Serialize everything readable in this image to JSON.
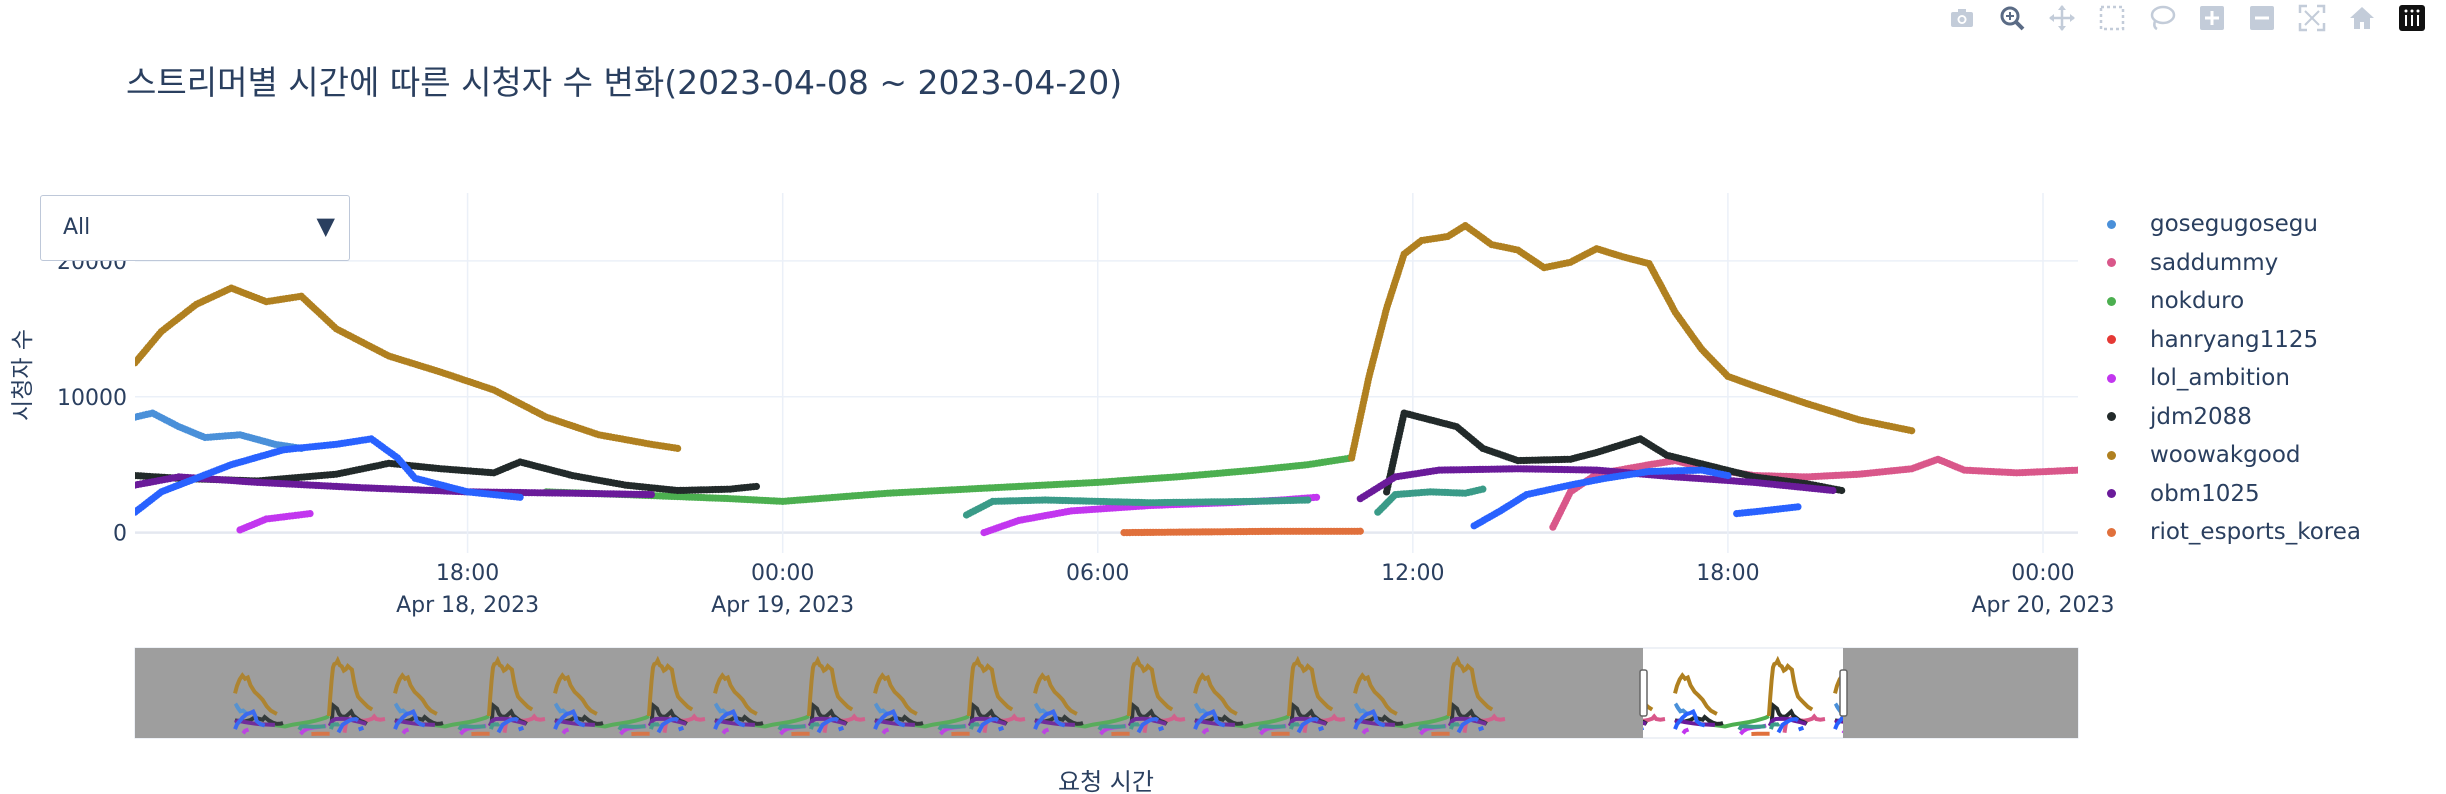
{
  "modebar": {
    "buttons": [
      {
        "name": "camera-icon",
        "title": "Download plot as a png"
      },
      {
        "name": "zoom-icon",
        "title": "Zoom"
      },
      {
        "name": "pan-icon",
        "title": "Pan"
      },
      {
        "name": "box-select-icon",
        "title": "Box Select"
      },
      {
        "name": "lasso-select-icon",
        "title": "Lasso Select"
      },
      {
        "name": "zoom-in-icon",
        "title": "Zoom in"
      },
      {
        "name": "zoom-out-icon",
        "title": "Zoom out"
      },
      {
        "name": "autoscale-icon",
        "title": "Autoscale"
      },
      {
        "name": "reset-axes-icon",
        "title": "Reset axes"
      },
      {
        "name": "plotly-logo-icon",
        "title": "Produced with Plotly"
      }
    ]
  },
  "dropdown": {
    "selected": "All"
  },
  "chart_data": {
    "type": "scatter",
    "title": "스트리머별 시간에 따른 시청자 수 변화(2023-04-08 ~ 2023-04-20)",
    "xlabel": "요청 시간",
    "ylabel": "시청자 수",
    "x_range": [
      "2023-04-18 11:40",
      "2023-04-20 00:40"
    ],
    "y_range": [
      -1500,
      25000
    ],
    "y_ticks": [
      0,
      10000,
      20000
    ],
    "y_tick_labels": [
      "0",
      "10000",
      "20000"
    ],
    "x_ticks": [
      {
        "at": "2023-04-18 18:00",
        "label": "18:00",
        "sub": "Apr 18, 2023"
      },
      {
        "at": "2023-04-19 00:00",
        "label": "00:00",
        "sub": "Apr 19, 2023"
      },
      {
        "at": "2023-04-19 06:00",
        "label": "06:00",
        "sub": ""
      },
      {
        "at": "2023-04-19 12:00",
        "label": "12:00",
        "sub": ""
      },
      {
        "at": "2023-04-19 18:00",
        "label": "18:00",
        "sub": ""
      },
      {
        "at": "2023-04-20 00:00",
        "label": "00:00",
        "sub": "Apr 20, 2023"
      }
    ],
    "grid": true,
    "legend_position": "right",
    "rangeslider": {
      "visible": true,
      "selected_start": "2023-04-18 11:40",
      "selected_end": "2023-04-20 00:40"
    },
    "series": [
      {
        "name": "gosegugosegu",
        "color": "#4a90d9",
        "segments": [
          [
            [
              "2023-04-18 11:40",
              8500
            ],
            [
              "2023-04-18 12:00",
              8800
            ],
            [
              "2023-04-18 12:30",
              7800
            ],
            [
              "2023-04-18 13:00",
              7000
            ],
            [
              "2023-04-18 13:40",
              7200
            ],
            [
              "2023-04-18 14:20",
              6500
            ],
            [
              "2023-04-18 14:50",
              6200
            ]
          ]
        ]
      },
      {
        "name": "saddummy",
        "color": "#d9578a",
        "segments": [
          [
            [
              "2023-04-19 14:40",
              400
            ],
            [
              "2023-04-19 15:00",
              3000
            ],
            [
              "2023-04-19 15:30",
              4300
            ],
            [
              "2023-04-19 16:30",
              5000
            ],
            [
              "2023-04-19 17:00",
              5300
            ],
            [
              "2023-04-19 17:30",
              4800
            ],
            [
              "2023-04-19 18:30",
              4200
            ],
            [
              "2023-04-19 19:30",
              4100
            ],
            [
              "2023-04-19 20:30",
              4300
            ],
            [
              "2023-04-19 21:30",
              4700
            ],
            [
              "2023-04-19 22:00",
              5400
            ],
            [
              "2023-04-19 22:30",
              4600
            ],
            [
              "2023-04-19 23:30",
              4400
            ],
            [
              "2023-04-20 00:40",
              4600
            ]
          ]
        ]
      },
      {
        "name": "nokduro",
        "color": "#4caf50",
        "segments": [
          [
            [
              "2023-04-18 19:30",
              3000
            ],
            [
              "2023-04-18 21:00",
              2800
            ],
            [
              "2023-04-18 23:00",
              2500
            ],
            [
              "2023-04-19 00:00",
              2300
            ],
            [
              "2023-04-19 02:00",
              2900
            ],
            [
              "2023-04-19 04:00",
              3300
            ],
            [
              "2023-04-19 06:00",
              3700
            ],
            [
              "2023-04-19 07:30",
              4100
            ],
            [
              "2023-04-19 09:00",
              4600
            ],
            [
              "2023-04-19 10:00",
              5000
            ],
            [
              "2023-04-19 10:50",
              5500
            ]
          ]
        ]
      },
      {
        "name": "hanryang1125",
        "color": "#e53935",
        "segments": []
      },
      {
        "name": "lol_ambition",
        "color": "#c236ef",
        "segments": [
          [
            [
              "2023-04-18 13:40",
              200
            ],
            [
              "2023-04-18 14:10",
              1000
            ],
            [
              "2023-04-18 15:00",
              1400
            ]
          ],
          [
            [
              "2023-04-19 03:50",
              0
            ],
            [
              "2023-04-19 04:30",
              900
            ],
            [
              "2023-04-19 05:30",
              1600
            ],
            [
              "2023-04-19 07:00",
              2000
            ],
            [
              "2023-04-19 08:30",
              2200
            ],
            [
              "2023-04-19 09:30",
              2400
            ],
            [
              "2023-04-19 10:10",
              2600
            ]
          ]
        ]
      },
      {
        "name": "jdm2088",
        "color": "#222a2a",
        "segments": [
          [
            [
              "2023-04-18 11:40",
              4200
            ],
            [
              "2023-04-18 12:30",
              4000
            ],
            [
              "2023-04-18 14:00",
              3800
            ],
            [
              "2023-04-18 15:30",
              4300
            ],
            [
              "2023-04-18 16:30",
              5100
            ],
            [
              "2023-04-18 17:30",
              4700
            ],
            [
              "2023-04-18 18:30",
              4400
            ],
            [
              "2023-04-18 19:00",
              5200
            ],
            [
              "2023-04-18 20:00",
              4200
            ],
            [
              "2023-04-18 21:00",
              3500
            ],
            [
              "2023-04-18 22:00",
              3100
            ],
            [
              "2023-04-18 23:00",
              3200
            ],
            [
              "2023-04-18 23:30",
              3400
            ]
          ],
          [
            [
              "2023-04-19 11:30",
              3000
            ],
            [
              "2023-04-19 11:50",
              8800
            ],
            [
              "2023-04-19 12:20",
              8300
            ],
            [
              "2023-04-19 12:50",
              7800
            ],
            [
              "2023-04-19 13:20",
              6200
            ],
            [
              "2023-04-19 14:00",
              5300
            ],
            [
              "2023-04-19 15:00",
              5400
            ],
            [
              "2023-04-19 15:30",
              5900
            ],
            [
              "2023-04-19 16:20",
              6900
            ],
            [
              "2023-04-19 16:50",
              5700
            ],
            [
              "2023-04-19 17:40",
              4900
            ],
            [
              "2023-04-19 18:30",
              4100
            ],
            [
              "2023-04-19 19:30",
              3600
            ],
            [
              "2023-04-19 20:10",
              3100
            ]
          ]
        ]
      },
      {
        "name": "woowakgood",
        "color": "#b08020",
        "segments": [
          [
            [
              "2023-04-18 11:40",
              12500
            ],
            [
              "2023-04-18 12:10",
              14800
            ],
            [
              "2023-04-18 12:50",
              16800
            ],
            [
              "2023-04-18 13:30",
              18000
            ],
            [
              "2023-04-18 14:10",
              17000
            ],
            [
              "2023-04-18 14:50",
              17400
            ],
            [
              "2023-04-18 15:30",
              15000
            ],
            [
              "2023-04-18 16:30",
              13000
            ],
            [
              "2023-04-18 17:30",
              11800
            ],
            [
              "2023-04-18 18:30",
              10500
            ],
            [
              "2023-04-18 19:30",
              8500
            ],
            [
              "2023-04-18 20:30",
              7200
            ],
            [
              "2023-04-18 21:30",
              6500
            ],
            [
              "2023-04-18 22:00",
              6200
            ]
          ],
          [
            [
              "2023-04-19 10:50",
              5500
            ],
            [
              "2023-04-19 11:10",
              11500
            ],
            [
              "2023-04-19 11:30",
              16500
            ],
            [
              "2023-04-19 11:50",
              20500
            ],
            [
              "2023-04-19 12:10",
              21500
            ],
            [
              "2023-04-19 12:40",
              21800
            ],
            [
              "2023-04-19 13:00",
              22600
            ],
            [
              "2023-04-19 13:30",
              21200
            ],
            [
              "2023-04-19 14:00",
              20800
            ],
            [
              "2023-04-19 14:30",
              19500
            ],
            [
              "2023-04-19 15:00",
              19900
            ],
            [
              "2023-04-19 15:30",
              20900
            ],
            [
              "2023-04-19 16:00",
              20300
            ],
            [
              "2023-04-19 16:30",
              19800
            ],
            [
              "2023-04-19 17:00",
              16200
            ],
            [
              "2023-04-19 17:30",
              13500
            ],
            [
              "2023-04-19 18:00",
              11500
            ],
            [
              "2023-04-19 18:30",
              10800
            ],
            [
              "2023-04-19 19:30",
              9500
            ],
            [
              "2023-04-19 20:30",
              8300
            ],
            [
              "2023-04-19 21:30",
              7500
            ]
          ]
        ]
      },
      {
        "name": "obm1025",
        "color": "#6a1b9a",
        "segments": [
          [
            [
              "2023-04-18 11:40",
              3500
            ],
            [
              "2023-04-18 12:30",
              4100
            ],
            [
              "2023-04-18 14:00",
              3700
            ],
            [
              "2023-04-18 16:00",
              3300
            ],
            [
              "2023-04-18 18:00",
              3000
            ],
            [
              "2023-04-18 20:00",
              2900
            ],
            [
              "2023-04-18 21:30",
              2800
            ]
          ],
          [
            [
              "2023-04-19 11:00",
              2500
            ],
            [
              "2023-04-19 11:40",
              4100
            ],
            [
              "2023-04-19 12:30",
              4600
            ],
            [
              "2023-04-19 14:00",
              4700
            ],
            [
              "2023-04-19 15:30",
              4600
            ],
            [
              "2023-04-19 17:00",
              4100
            ],
            [
              "2023-04-19 18:30",
              3700
            ],
            [
              "2023-04-19 20:00",
              3100
            ]
          ]
        ]
      },
      {
        "name": "riot_esports_korea",
        "color": "#e0703c",
        "segments": [
          [
            [
              "2023-04-19 06:30",
              0
            ],
            [
              "2023-04-19 08:00",
              50
            ],
            [
              "2023-04-19 09:30",
              100
            ],
            [
              "2023-04-19 11:00",
              100
            ]
          ]
        ]
      },
      {
        "name": "",
        "color": "#2962ff",
        "legend": false,
        "segments": [
          [
            [
              "2023-04-19 13:10",
              500
            ],
            [
              "2023-04-19 13:40",
              1600
            ],
            [
              "2023-04-19 14:10",
              2800
            ],
            [
              "2023-04-19 15:00",
              3500
            ],
            [
              "2023-04-19 15:40",
              4000
            ],
            [
              "2023-04-19 16:30",
              4500
            ],
            [
              "2023-04-19 17:30",
              4600
            ],
            [
              "2023-04-19 18:00",
              4200
            ]
          ],
          [
            [
              "2023-04-19 18:10",
              1400
            ],
            [
              "2023-04-19 18:40",
              1600
            ],
            [
              "2023-04-19 19:20",
              1900
            ]
          ],
          [
            [
              "2023-04-18 11:40",
              1500
            ],
            [
              "2023-04-18 12:10",
              3000
            ],
            [
              "2023-04-18 13:30",
              5000
            ],
            [
              "2023-04-18 14:30",
              6100
            ],
            [
              "2023-04-18 15:30",
              6500
            ],
            [
              "2023-04-18 16:10",
              6900
            ],
            [
              "2023-04-18 16:40",
              5500
            ],
            [
              "2023-04-18 17:00",
              4000
            ],
            [
              "2023-04-18 18:00",
              3000
            ],
            [
              "2023-04-18 19:00",
              2600
            ]
          ]
        ]
      },
      {
        "name": "",
        "color": "#3a9b88",
        "legend": false,
        "segments": [
          [
            [
              "2023-04-19 03:30",
              1300
            ],
            [
              "2023-04-19 04:00",
              2300
            ],
            [
              "2023-04-19 05:00",
              2400
            ],
            [
              "2023-04-19 07:00",
              2200
            ],
            [
              "2023-04-19 09:00",
              2300
            ],
            [
              "2023-04-19 10:00",
              2400
            ]
          ],
          [
            [
              "2023-04-19 11:20",
              1500
            ],
            [
              "2023-04-19 11:40",
              2800
            ],
            [
              "2023-04-19 12:20",
              3000
            ],
            [
              "2023-04-19 13:00",
              2900
            ],
            [
              "2023-04-19 13:20",
              3200
            ]
          ]
        ]
      }
    ],
    "legend_entries": [
      "gosegugosegu",
      "saddummy",
      "nokduro",
      "hanryang1125",
      "lol_ambition",
      "jdm2088",
      "woowakgood",
      "obm1025",
      "riot_esports_korea"
    ]
  }
}
